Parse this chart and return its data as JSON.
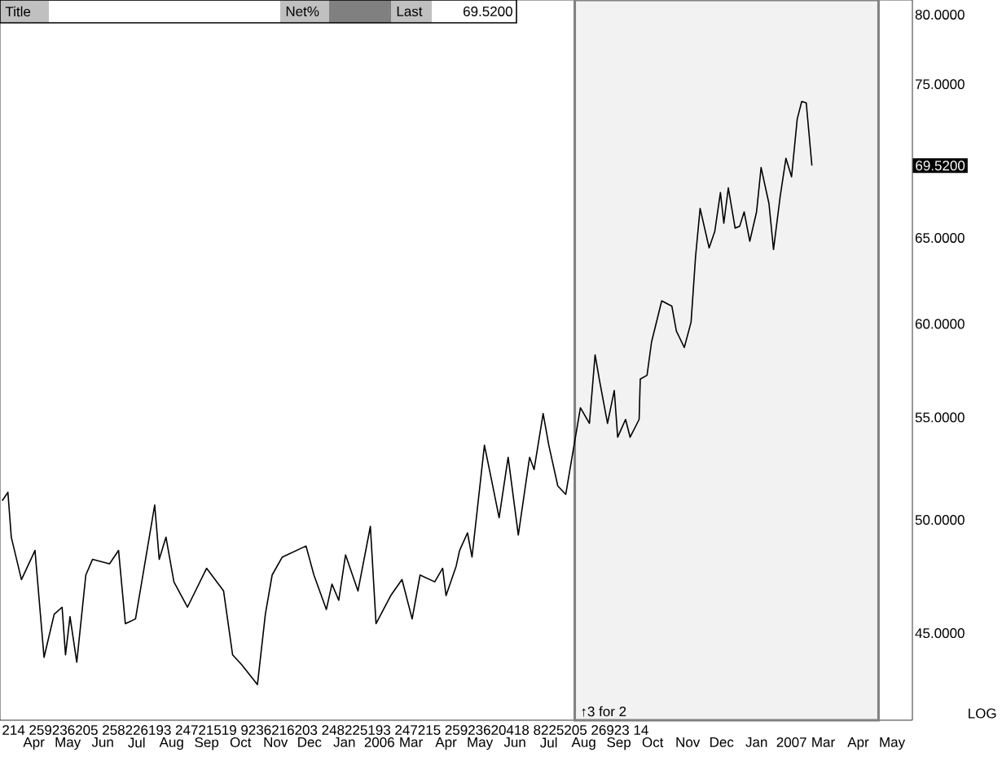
{
  "chart_data": {
    "type": "line",
    "color": "#000000",
    "x": [
      "2005-03-04",
      "2005-03-09",
      "2005-03-12",
      "2005-03-21",
      "2005-04-02",
      "2005-04-10",
      "2005-04-19",
      "2005-04-26",
      "2005-04-29",
      "2005-05-03",
      "2005-05-09",
      "2005-05-17",
      "2005-05-23",
      "2005-06-07",
      "2005-06-15",
      "2005-06-21",
      "2005-06-30",
      "2005-07-17",
      "2005-07-21",
      "2005-07-27",
      "2005-08-03",
      "2005-08-15",
      "2005-09-01",
      "2005-09-16",
      "2005-09-24",
      "2005-10-02",
      "2005-10-16",
      "2005-10-23",
      "2005-10-29",
      "2005-11-07",
      "2005-11-28",
      "2005-12-05",
      "2005-12-16",
      "2005-12-21",
      "2005-12-27",
      "2006-01-02",
      "2006-01-13",
      "2006-01-24",
      "2006-01-29",
      "2006-02-11",
      "2006-02-21",
      "2006-03-02",
      "2006-03-09",
      "2006-03-22",
      "2006-03-29",
      "2006-04-01",
      "2006-04-10",
      "2006-04-13",
      "2006-04-20",
      "2006-04-24",
      "2006-05-05",
      "2006-05-12",
      "2006-05-18",
      "2006-05-26",
      "2006-06-04",
      "2006-06-14",
      "2006-06-18",
      "2006-06-26",
      "2006-07-01",
      "2006-07-09",
      "2006-07-16",
      "2006-07-24",
      "2006-07-29",
      "2006-08-06",
      "2006-08-11",
      "2006-08-15",
      "2006-08-22",
      "2006-08-28",
      "2006-08-31",
      "2006-09-07",
      "2006-09-11",
      "2006-09-19",
      "2006-09-20",
      "2006-09-26",
      "2006-09-30",
      "2006-10-09",
      "2006-10-18",
      "2006-10-22",
      "2006-10-29",
      "2006-11-04",
      "2006-11-08",
      "2006-11-12",
      "2006-11-20",
      "2006-11-25",
      "2006-11-30",
      "2006-12-03",
      "2006-12-07",
      "2006-12-13",
      "2006-12-17",
      "2006-12-21",
      "2006-12-26",
      "2007-01-01",
      "2007-01-05",
      "2007-01-12",
      "2007-01-16",
      "2007-01-22",
      "2007-01-27",
      "2007-02-01",
      "2007-02-06",
      "2007-02-10",
      "2007-02-14",
      "2007-02-19"
    ],
    "values": [
      50.9,
      51.3,
      49.2,
      47.3,
      48.6,
      44.0,
      45.8,
      46.1,
      44.1,
      45.7,
      43.8,
      47.5,
      48.2,
      48.0,
      48.6,
      45.4,
      45.6,
      50.7,
      48.2,
      49.2,
      47.2,
      46.1,
      47.8,
      46.8,
      44.1,
      43.7,
      42.9,
      45.8,
      47.5,
      48.3,
      48.8,
      47.5,
      46.0,
      47.1,
      46.4,
      48.4,
      46.8,
      49.7,
      45.4,
      46.6,
      47.3,
      45.6,
      47.5,
      47.2,
      47.8,
      46.6,
      47.9,
      48.6,
      49.4,
      48.3,
      53.6,
      51.7,
      50.1,
      53.0,
      49.3,
      53.0,
      52.4,
      55.2,
      53.6,
      51.6,
      51.2,
      53.8,
      55.5,
      54.7,
      58.3,
      56.9,
      54.7,
      56.4,
      54.0,
      54.9,
      54.0,
      54.9,
      57.0,
      57.2,
      59.0,
      61.3,
      61.0,
      59.6,
      58.7,
      60.1,
      63.9,
      66.8,
      64.4,
      65.4,
      67.8,
      65.9,
      68.1,
      65.6,
      65.7,
      66.6,
      64.8,
      66.6,
      69.4,
      67.1,
      64.3,
      67.6,
      70.0,
      68.8,
      72.6,
      73.8,
      73.7,
      69.52
    ],
    "xlim": [
      "2005-03-02",
      "2007-05-19"
    ],
    "xticks": [
      {
        "value": "2005-04-01",
        "label": "Apr"
      },
      {
        "value": "2005-05-01",
        "label": "May"
      },
      {
        "value": "2005-06-01",
        "label": "Jun"
      },
      {
        "value": "2005-07-01",
        "label": "Jul"
      },
      {
        "value": "2005-08-01",
        "label": "Aug"
      },
      {
        "value": "2005-09-01",
        "label": "Sep"
      },
      {
        "value": "2005-10-01",
        "label": "Oct"
      },
      {
        "value": "2005-11-01",
        "label": "Nov"
      },
      {
        "value": "2005-12-01",
        "label": "Dec"
      },
      {
        "value": "2006-01-01",
        "label": "Jan"
      },
      {
        "value": "2006-02-01",
        "label": "2006"
      },
      {
        "value": "2006-03-01",
        "label": "Mar"
      },
      {
        "value": "2006-04-01",
        "label": "Apr"
      },
      {
        "value": "2006-05-01",
        "label": "May"
      },
      {
        "value": "2006-06-01",
        "label": "Jun"
      },
      {
        "value": "2006-07-01",
        "label": "Jul"
      },
      {
        "value": "2006-08-01",
        "label": "Aug"
      },
      {
        "value": "2006-09-01",
        "label": "Sep"
      },
      {
        "value": "2006-10-01",
        "label": "Oct"
      },
      {
        "value": "2006-11-01",
        "label": "Nov"
      },
      {
        "value": "2006-12-01",
        "label": "Dec"
      },
      {
        "value": "2007-01-01",
        "label": "Jan"
      },
      {
        "value": "2007-02-01",
        "label": "2007"
      },
      {
        "value": "2007-03-01",
        "label": "Mar"
      },
      {
        "value": "2007-04-01",
        "label": "Apr"
      },
      {
        "value": "2007-05-01",
        "label": "May"
      }
    ],
    "ylim": [
      41.5,
      81.1
    ],
    "log": true,
    "yticks": [
      {
        "value": 45,
        "label": "45.0000"
      },
      {
        "value": 50,
        "label": "50.0000"
      },
      {
        "value": 55,
        "label": "55.0000"
      },
      {
        "value": 60,
        "label": "60.0000"
      },
      {
        "value": 65,
        "label": "65.0000"
      },
      {
        "value": 75,
        "label": "75.0000"
      },
      {
        "value": 80,
        "label": "80.0000"
      }
    ],
    "bands": [
      {
        "axis": "x",
        "from": "2006-07-24",
        "to": "2007-04-19",
        "color": "#808080"
      }
    ],
    "annotations": [
      "Title",
      "Net%",
      "Last",
      "69.5200",
      "LOG",
      "↑3 for 2",
      "214  259236205  258226193  24721519 9236216203  248225193  247215  25923620418 8225205  26923 14",
      "69.5200"
    ]
  }
}
